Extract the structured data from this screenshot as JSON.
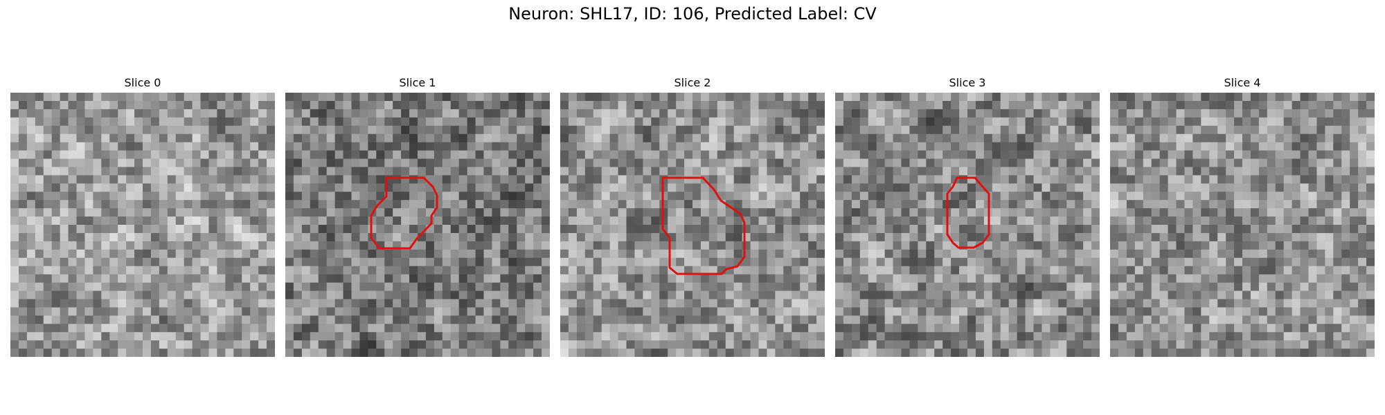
{
  "figure": {
    "title": "Neuron: SHL17, ID: 106, Predicted Label: CV",
    "contour_color": "#e01010"
  },
  "panels": [
    {
      "title": "Slice 0",
      "has_contour": false,
      "seed": 11,
      "bias": 0.1
    },
    {
      "title": "Slice 1",
      "has_contour": true,
      "seed": 23,
      "bias": -0.05
    },
    {
      "title": "Slice 2",
      "has_contour": true,
      "seed": 37,
      "bias": 0.05
    },
    {
      "title": "Slice 3",
      "has_contour": true,
      "seed": 41,
      "bias": 0.02
    },
    {
      "title": "Slice 4",
      "has_contour": false,
      "seed": 53,
      "bias": 0.06
    }
  ]
}
